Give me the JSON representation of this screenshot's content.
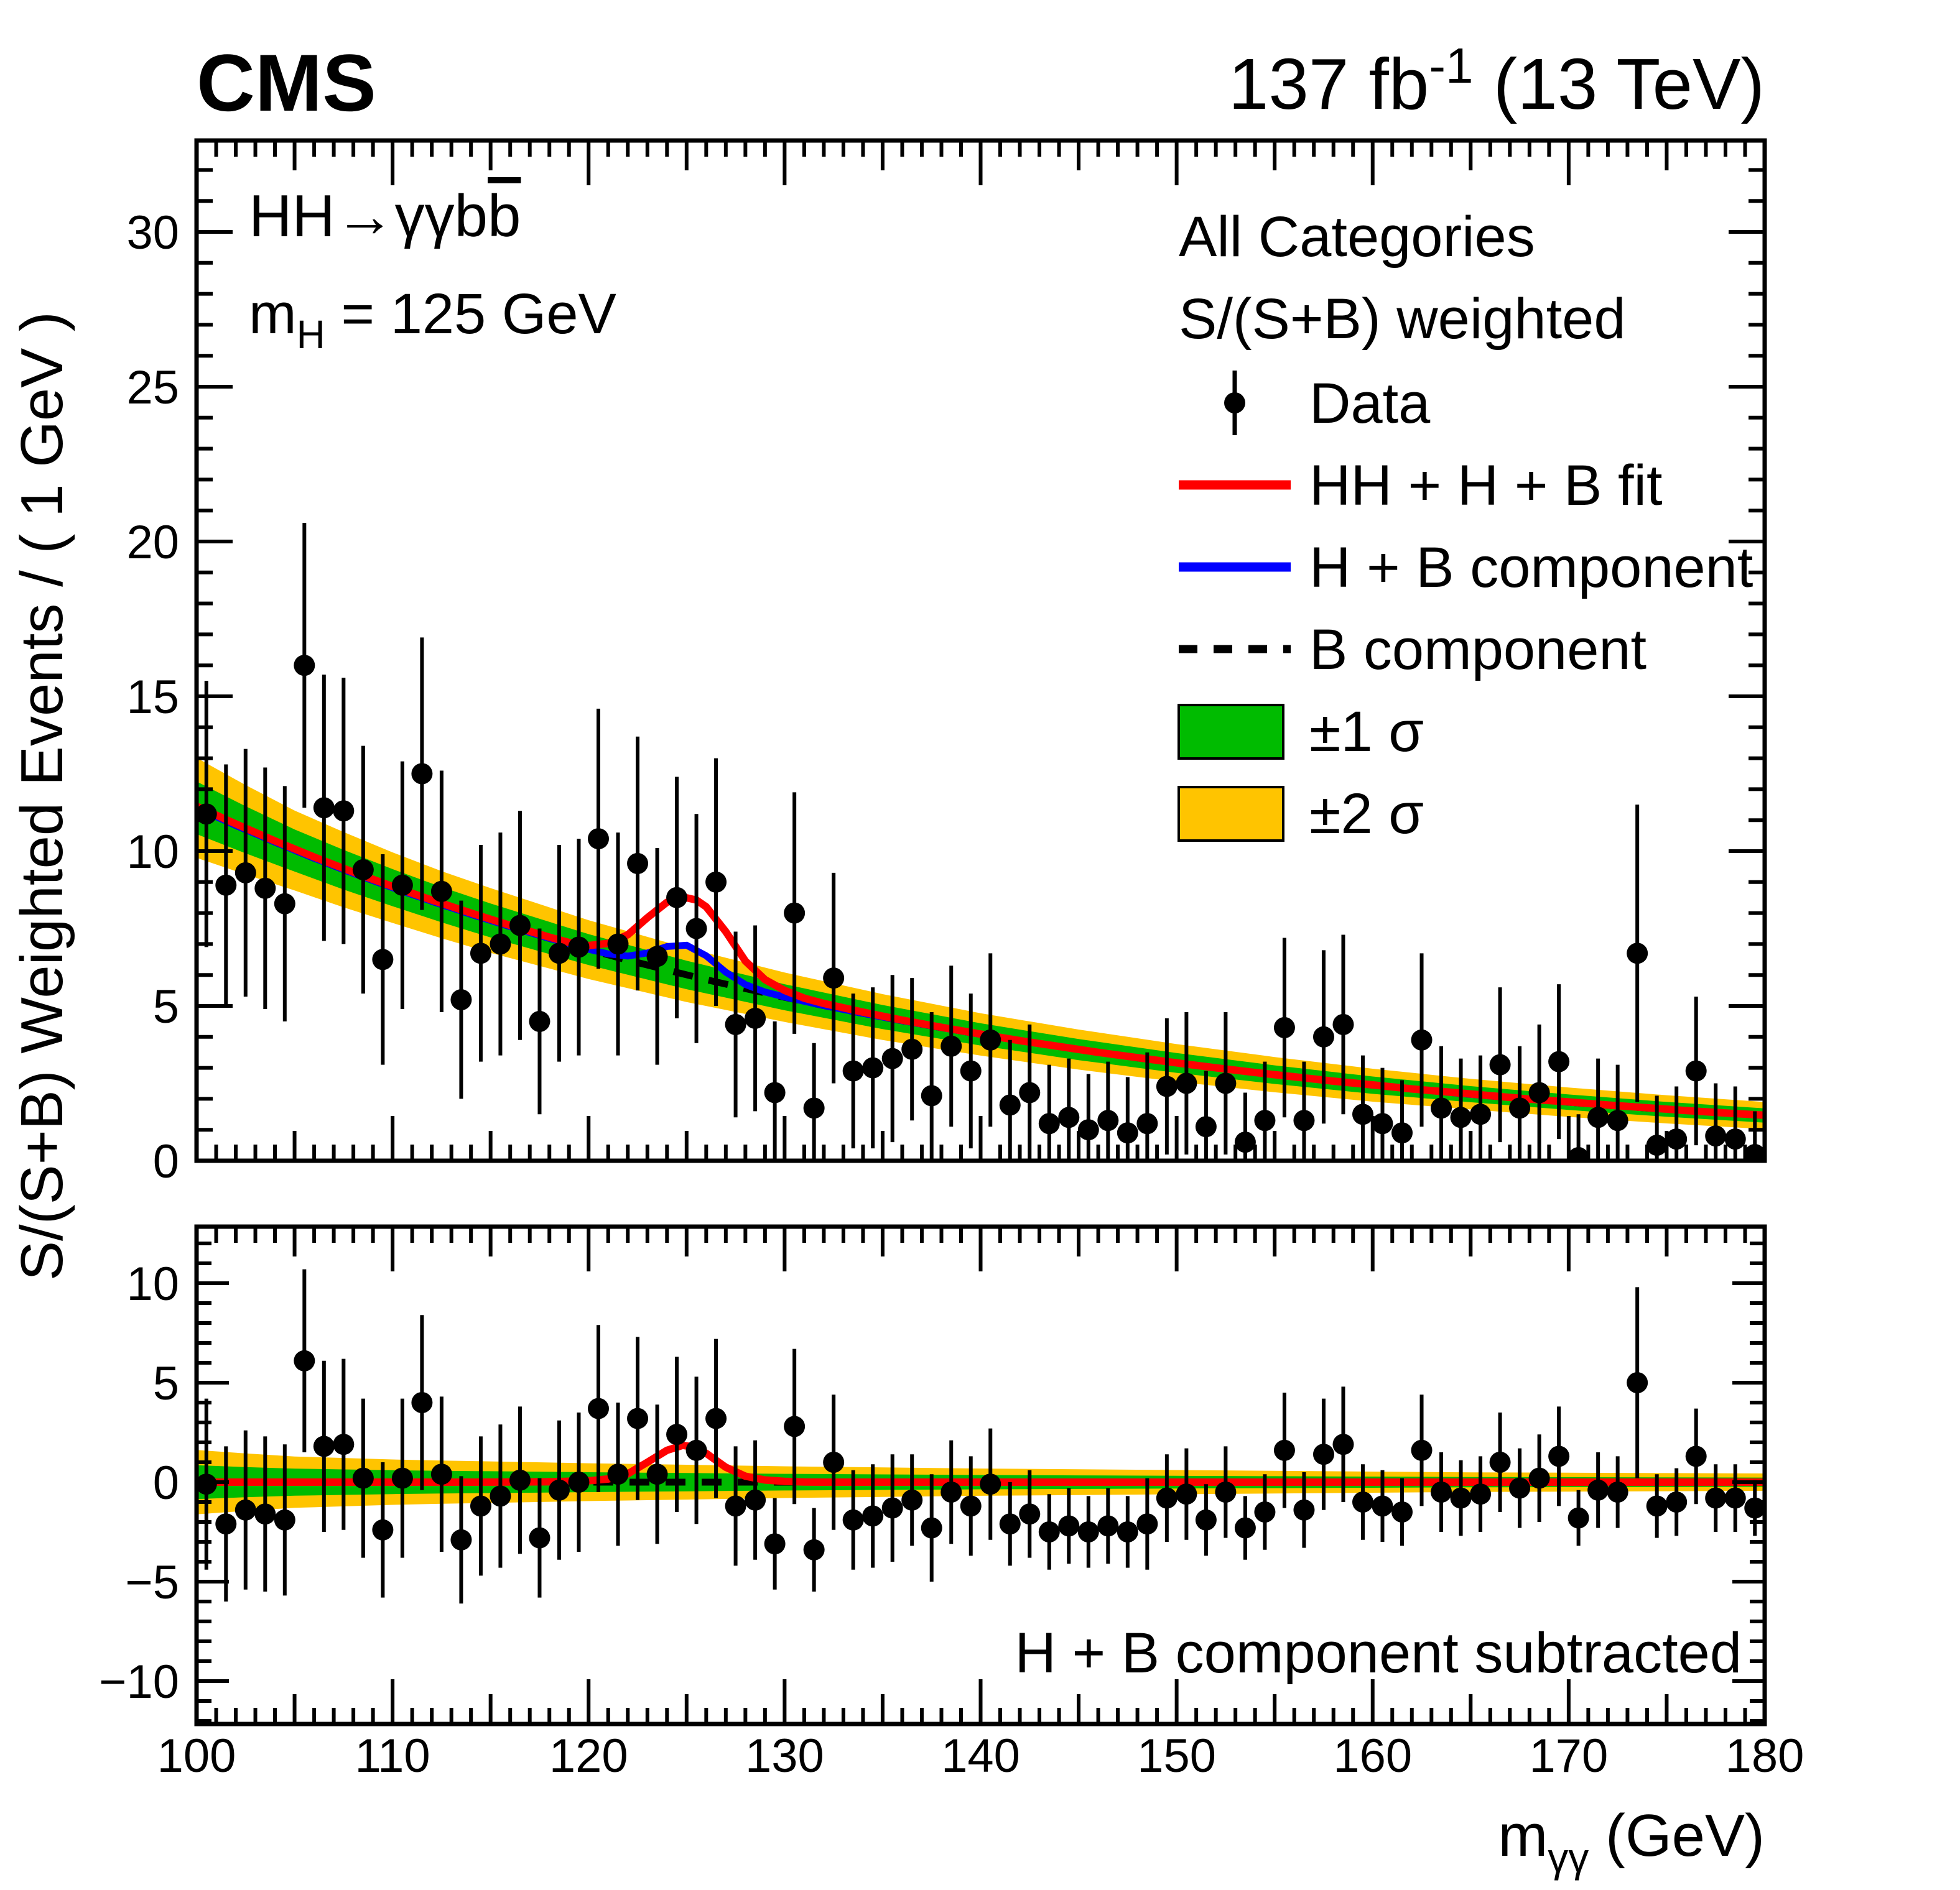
{
  "header": {
    "cms": "CMS",
    "lumi_value": "137 fb",
    "lumi_sup": "-1",
    "lumi_energy": " (13 TeV)"
  },
  "labels": {
    "channel_main": "HH→γγb",
    "channel_bbar": "b",
    "mass_m": "m",
    "mass_sub": "H",
    "mass_value": " = 125 GeV",
    "subtracted": "H + B component subtracted"
  },
  "legend": {
    "items": [
      {
        "label": "All Categories",
        "marker": "none"
      },
      {
        "label": "S/(S+B) weighted",
        "marker": "none"
      },
      {
        "label": "Data",
        "marker": "data-point"
      },
      {
        "label": "HH + H + B fit",
        "marker": "red-line"
      },
      {
        "label": "H + B component",
        "marker": "blue-line"
      },
      {
        "label": "B component",
        "marker": "dashed-line"
      },
      {
        "label": "±1 σ",
        "marker": "green-box"
      },
      {
        "label": "±2 σ",
        "marker": "yellow-box"
      }
    ]
  },
  "axes": {
    "y_title_top": "S/(S+B) Weighted Events / ( 1 GeV )",
    "x_title_m": "m",
    "x_title_sub": "γγ",
    "x_title_unit": " (GeV)",
    "x_tick_values": [
      100,
      110,
      120,
      130,
      140,
      150,
      160,
      170,
      180
    ],
    "x_tick_labels": [
      "100",
      "110",
      "120",
      "130",
      "140",
      "150",
      "160",
      "170",
      "180"
    ],
    "ytop_tick_values": [
      0,
      5,
      10,
      15,
      20,
      25,
      30
    ],
    "ytop_tick_labels": [
      "0",
      "5",
      "10",
      "15",
      "20",
      "25",
      "30"
    ],
    "ybot_tick_values": [
      -10,
      -5,
      0,
      5,
      10
    ],
    "ybot_tick_labels": [
      "−10",
      "−5",
      "0",
      "5",
      "10"
    ]
  },
  "colors": {
    "red_fit": "#ff0000",
    "blue_component": "#0000ff",
    "b_component": "#000000",
    "one_sigma": "#00bb00",
    "two_sigma": "#ffc400",
    "data": "#000000"
  },
  "chart_data": {
    "type": "scatter+line",
    "title": "S/(S+B) weighted diphoton mass spectrum, HH→γγbb̅, all categories",
    "xlabel": "m_gammagamma (GeV)",
    "ylabel_top": "S/(S+B) Weighted Events / ( 1 GeV )",
    "xlim": [
      100,
      180
    ],
    "ylim_top": [
      0,
      32.95
    ],
    "ylim_bottom": [
      -12.2,
      12.85
    ],
    "m": [
      100.5,
      101.5,
      102.5,
      103.5,
      104.5,
      105.5,
      106.5,
      107.5,
      108.5,
      109.5,
      110.5,
      111.5,
      112.5,
      113.5,
      114.5,
      115.5,
      116.5,
      117.5,
      118.5,
      119.5,
      120.5,
      121.5,
      122.5,
      123.5,
      124.5,
      125.5,
      126.5,
      127.5,
      128.5,
      129.5,
      130.5,
      131.5,
      132.5,
      133.5,
      134.5,
      135.5,
      136.5,
      137.5,
      138.5,
      139.5,
      140.5,
      141.5,
      142.5,
      143.5,
      144.5,
      145.5,
      146.5,
      147.5,
      148.5,
      149.5,
      150.5,
      151.5,
      152.5,
      153.5,
      154.5,
      155.5,
      156.5,
      157.5,
      158.5,
      159.5,
      160.5,
      161.5,
      162.5,
      163.5,
      164.5,
      165.5,
      166.5,
      167.5,
      168.5,
      169.5,
      170.5,
      171.5,
      172.5,
      173.5,
      174.5,
      175.5,
      176.5,
      177.5,
      178.5,
      179.5
    ],
    "y": [
      11.2,
      8.9,
      9.3,
      8.8,
      8.3,
      16.0,
      11.4,
      11.3,
      9.4,
      6.5,
      8.9,
      12.5,
      8.7,
      5.2,
      6.7,
      7.0,
      7.6,
      4.5,
      6.7,
      6.9,
      10.4,
      7.0,
      9.6,
      6.6,
      8.5,
      7.5,
      9.0,
      4.4,
      4.6,
      2.2,
      8.0,
      1.7,
      5.9,
      2.9,
      3.0,
      3.3,
      3.6,
      2.1,
      3.7,
      2.9,
      3.9,
      1.8,
      2.2,
      1.2,
      1.4,
      1.0,
      1.3,
      0.9,
      1.2,
      2.4,
      2.5,
      1.1,
      2.5,
      0.6,
      1.3,
      4.3,
      1.3,
      4.0,
      4.4,
      1.5,
      1.2,
      0.9,
      3.9,
      1.7,
      1.4,
      1.5,
      3.1,
      1.7,
      2.2,
      3.2,
      0.1,
      1.4,
      1.3,
      6.7,
      0.5,
      0.7,
      2.9,
      0.8,
      0.7,
      0.2
    ],
    "err": [
      4.3,
      3.9,
      4.0,
      3.9,
      3.8,
      4.6,
      4.3,
      4.3,
      4.0,
      3.4,
      4.0,
      4.4,
      3.9,
      3.2,
      3.5,
      3.6,
      3.7,
      3.0,
      3.5,
      3.5,
      4.2,
      3.6,
      4.1,
      3.5,
      3.9,
      3.7,
      4.0,
      3.0,
      3.0,
      2.3,
      3.9,
      2.1,
      3.4,
      2.5,
      2.6,
      2.7,
      2.3,
      2.7,
      2.6,
      2.5,
      2.8,
      2.1,
      2.2,
      1.9,
      1.9,
      1.8,
      1.9,
      1.8,
      2.3,
      2.2,
      2.3,
      1.8,
      2.3,
      1.6,
      1.9,
      2.9,
      1.9,
      2.8,
      2.9,
      1.9,
      1.8,
      1.7,
      2.8,
      2.0,
      1.9,
      1.9,
      2.5,
      2.0,
      2.2,
      2.5,
      1.4,
      1.9,
      1.8,
      4.8,
      1.6,
      1.7,
      2.4,
      1.7,
      1.7,
      1.4
    ],
    "residual": [
      -0.1,
      -2.1,
      -1.4,
      -1.6,
      -1.9,
      6.1,
      1.8,
      1.9,
      0.2,
      -2.4,
      0.2,
      4.0,
      0.4,
      -2.9,
      -1.2,
      -0.7,
      0.1,
      -2.8,
      -0.4,
      0.0,
      3.7,
      0.4,
      3.2,
      0.4,
      2.4,
      1.6,
      3.2,
      -1.2,
      -0.9,
      -3.1,
      2.8,
      -3.4,
      1.0,
      -1.9,
      -1.7,
      -1.3,
      -0.9,
      -2.3,
      -0.5,
      -1.2,
      -0.1,
      -2.1,
      -1.6,
      -2.5,
      -2.2,
      -2.5,
      -2.2,
      -2.5,
      -2.1,
      -0.8,
      -0.6,
      -1.9,
      -0.5,
      -2.3,
      -1.5,
      1.6,
      -1.4,
      1.4,
      1.9,
      -1.0,
      -1.2,
      -1.5,
      1.6,
      -0.5,
      -0.8,
      -0.6,
      1.0,
      -0.3,
      0.2,
      1.3,
      -1.8,
      -0.4,
      -0.5,
      5.0,
      -1.2,
      -1.0,
      1.3,
      -0.8,
      -0.8,
      -1.3
    ],
    "curve_b": [
      [
        100,
        11.4
      ],
      [
        102,
        10.83
      ],
      [
        104,
        10.29
      ],
      [
        106,
        9.77
      ],
      [
        108,
        9.28
      ],
      [
        110,
        8.82
      ],
      [
        112,
        8.38
      ],
      [
        114,
        7.96
      ],
      [
        116,
        7.56
      ],
      [
        118,
        7.18
      ],
      [
        120,
        6.82
      ],
      [
        122,
        6.48
      ],
      [
        124,
        6.16
      ],
      [
        126,
        5.85
      ],
      [
        128,
        5.56
      ],
      [
        130,
        5.28
      ],
      [
        132,
        5.01
      ],
      [
        134,
        4.76
      ],
      [
        136,
        4.52
      ],
      [
        138,
        4.3
      ],
      [
        140,
        4.08
      ],
      [
        142,
        3.88
      ],
      [
        144,
        3.68
      ],
      [
        146,
        3.5
      ],
      [
        148,
        3.32
      ],
      [
        150,
        3.16
      ],
      [
        152,
        3.0
      ],
      [
        154,
        2.85
      ],
      [
        156,
        2.71
      ],
      [
        158,
        2.57
      ],
      [
        160,
        2.44
      ],
      [
        162,
        2.32
      ],
      [
        164,
        2.2
      ],
      [
        166,
        2.09
      ],
      [
        168,
        1.99
      ],
      [
        170,
        1.89
      ],
      [
        172,
        1.79
      ],
      [
        174,
        1.7
      ],
      [
        176,
        1.62
      ],
      [
        178,
        1.54
      ],
      [
        180,
        1.46
      ]
    ],
    "curve_hb": [
      [
        100,
        11.4
      ],
      [
        102,
        10.83
      ],
      [
        104,
        10.29
      ],
      [
        106,
        9.77
      ],
      [
        108,
        9.28
      ],
      [
        110,
        8.82
      ],
      [
        112,
        8.38
      ],
      [
        114,
        7.96
      ],
      [
        116,
        7.56
      ],
      [
        118,
        7.18
      ],
      [
        120,
        6.83
      ],
      [
        121,
        6.68
      ],
      [
        122,
        6.61
      ],
      [
        123,
        6.71
      ],
      [
        124,
        6.92
      ],
      [
        125,
        6.96
      ],
      [
        126,
        6.62
      ],
      [
        127,
        6.09
      ],
      [
        128,
        5.69
      ],
      [
        129,
        5.45
      ],
      [
        130,
        5.29
      ],
      [
        132,
        5.01
      ],
      [
        134,
        4.76
      ],
      [
        136,
        4.52
      ],
      [
        138,
        4.3
      ],
      [
        140,
        4.08
      ],
      [
        145,
        3.59
      ],
      [
        150,
        3.16
      ],
      [
        155,
        2.78
      ],
      [
        160,
        2.44
      ],
      [
        165,
        2.14
      ],
      [
        170,
        1.89
      ],
      [
        175,
        1.66
      ],
      [
        180,
        1.46
      ]
    ],
    "curve_red": [
      [
        100,
        11.45
      ],
      [
        102,
        10.88
      ],
      [
        104,
        10.33
      ],
      [
        106,
        9.81
      ],
      [
        108,
        9.32
      ],
      [
        110,
        8.86
      ],
      [
        112,
        8.42
      ],
      [
        114,
        8.0
      ],
      [
        116,
        7.6
      ],
      [
        118,
        7.22
      ],
      [
        119,
        7.05
      ],
      [
        120,
        6.95
      ],
      [
        121,
        7.02
      ],
      [
        122,
        7.3
      ],
      [
        123,
        7.85
      ],
      [
        124,
        8.35
      ],
      [
        124.8,
        8.52
      ],
      [
        125.5,
        8.42
      ],
      [
        126,
        8.2
      ],
      [
        127,
        7.4
      ],
      [
        128,
        6.45
      ],
      [
        129,
        5.85
      ],
      [
        130,
        5.5
      ],
      [
        131,
        5.25
      ],
      [
        132,
        5.08
      ],
      [
        134,
        4.8
      ],
      [
        136,
        4.54
      ],
      [
        138,
        4.31
      ],
      [
        140,
        4.09
      ],
      [
        142,
        3.88
      ],
      [
        144,
        3.69
      ],
      [
        146,
        3.5
      ],
      [
        148,
        3.33
      ],
      [
        150,
        3.16
      ],
      [
        152,
        3.0
      ],
      [
        154,
        2.85
      ],
      [
        156,
        2.71
      ],
      [
        158,
        2.57
      ],
      [
        160,
        2.45
      ],
      [
        162,
        2.32
      ],
      [
        164,
        2.21
      ],
      [
        166,
        2.1
      ],
      [
        168,
        1.99
      ],
      [
        170,
        1.9
      ],
      [
        172,
        1.8
      ],
      [
        174,
        1.71
      ],
      [
        176,
        1.62
      ],
      [
        178,
        1.54
      ],
      [
        180,
        1.47
      ]
    ],
    "curve_res": [
      [
        100,
        0
      ],
      [
        114,
        0
      ],
      [
        116,
        0.01
      ],
      [
        118,
        0.02
      ],
      [
        120,
        0.07
      ],
      [
        121,
        0.16
      ],
      [
        122,
        0.42
      ],
      [
        123,
        1.0
      ],
      [
        124,
        1.6
      ],
      [
        124.8,
        1.85
      ],
      [
        125.5,
        1.75
      ],
      [
        126,
        1.45
      ],
      [
        127,
        0.75
      ],
      [
        128,
        0.3
      ],
      [
        129,
        0.11
      ],
      [
        130,
        0.04
      ],
      [
        131,
        0.01
      ],
      [
        132,
        0
      ],
      [
        180,
        0
      ]
    ],
    "band": [
      [
        100,
        11.4,
        0.85
      ],
      [
        102.5,
        10.69,
        0.76
      ],
      [
        105,
        10.02,
        0.68
      ],
      [
        107.5,
        9.4,
        0.64
      ],
      [
        110,
        8.82,
        0.6
      ],
      [
        112.5,
        8.27,
        0.57
      ],
      [
        115,
        7.76,
        0.55
      ],
      [
        120,
        6.82,
        0.5
      ],
      [
        125,
        6.0,
        0.46
      ],
      [
        130,
        5.28,
        0.42
      ],
      [
        135,
        4.64,
        0.39
      ],
      [
        140,
        4.08,
        0.36
      ],
      [
        145,
        3.59,
        0.34
      ],
      [
        150,
        3.16,
        0.32
      ],
      [
        155,
        2.78,
        0.3
      ],
      [
        160,
        2.44,
        0.28
      ],
      [
        165,
        2.15,
        0.26
      ],
      [
        170,
        1.89,
        0.25
      ],
      [
        175,
        1.66,
        0.24
      ],
      [
        180,
        1.46,
        0.23
      ]
    ],
    "two_sigma_scale": 1.9
  }
}
